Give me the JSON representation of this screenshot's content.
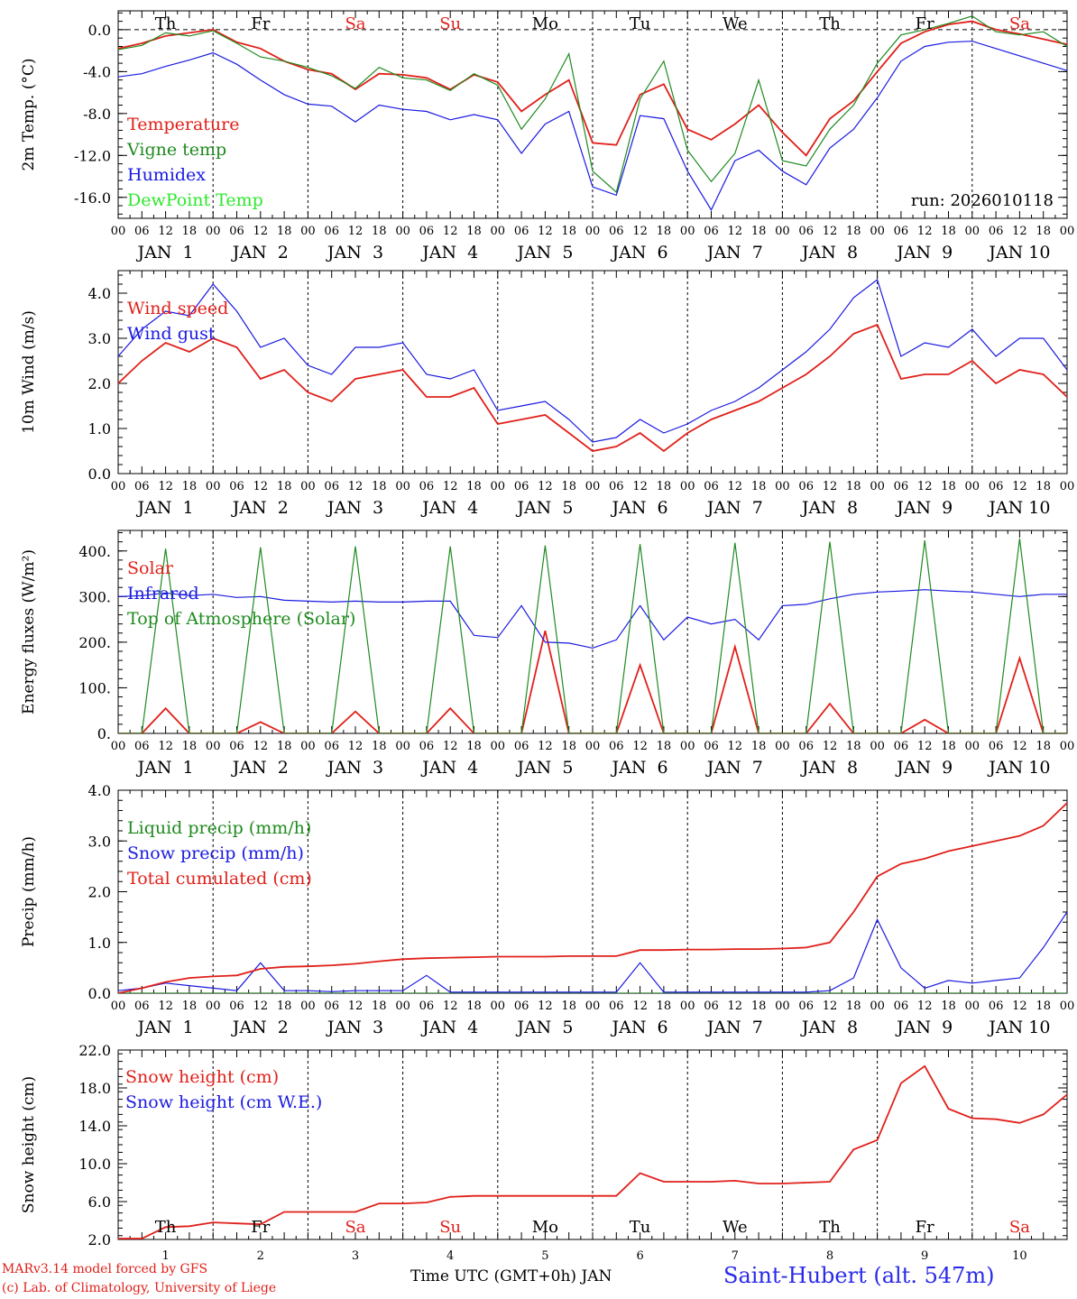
{
  "station_label": "Saint-Hubert (alt. 547m)",
  "credits": [
    "MARv3.14 model forced by GFS",
    "(c) Lab. of Climatology, University of Liege"
  ],
  "x_title": "Time UTC (GMT+0h) JAN",
  "run_label": "run: 2026010118",
  "day_names": [
    "Th",
    "Fr",
    "Sa",
    "Su",
    "Mo",
    "Tu",
    "We",
    "Th",
    "Fr",
    "Sa"
  ],
  "weekend_flags": [
    false,
    false,
    true,
    true,
    false,
    false,
    false,
    false,
    false,
    true
  ],
  "date_labels": [
    "JAN  1",
    "JAN  2",
    "JAN  3",
    "JAN  4",
    "JAN  5",
    "JAN  6",
    "JAN  7",
    "JAN  8",
    "JAN  9",
    "JAN 10"
  ],
  "day_numbers": [
    "1",
    "2",
    "3",
    "4",
    "5",
    "6",
    "7",
    "8",
    "9",
    "10"
  ],
  "hour_labels": [
    "00",
    "06",
    "12",
    "18"
  ],
  "last_hour_label": "00",
  "colors": {
    "red": "#e0201a",
    "green": "#1f8a1f",
    "blue": "#1a1ae0",
    "lime": "#2ee82e",
    "station": "#2a2ae8",
    "axis": "#000000"
  },
  "chart_data": [
    {
      "type": "line",
      "ylabel": "2m Temp. (°C)",
      "ylim": [
        -18,
        1.8
      ],
      "yticks": [
        -16,
        -12,
        -8,
        -4,
        0
      ],
      "tick_labels": [
        "-16.0",
        "-12.0",
        "-8.0",
        "-4.0",
        "0.0"
      ],
      "zero_line": true,
      "x_hours": [
        0,
        6,
        12,
        18,
        24,
        30,
        36,
        42,
        48,
        54,
        60,
        66,
        72,
        78,
        84,
        90,
        96,
        102,
        108,
        114,
        120,
        126,
        132,
        138,
        144,
        150,
        156,
        162,
        168,
        174,
        180,
        186,
        192,
        198,
        204,
        210,
        216,
        222,
        228,
        234,
        240
      ],
      "series": [
        {
          "name": "Temperature",
          "color": "red",
          "values": [
            -1.8,
            -1.3,
            -0.6,
            -0.3,
            0,
            -1.2,
            -1.8,
            -3,
            -3.8,
            -4.2,
            -5.7,
            -4.2,
            -4.3,
            -4.6,
            -5.7,
            -4.3,
            -5,
            -7.8,
            -6.2,
            -4.8,
            -10.8,
            -11,
            -6.2,
            -5.2,
            -9.5,
            -10.5,
            -9,
            -7.2,
            -9.8,
            -12,
            -8.5,
            -6.8,
            -4,
            -1.3,
            -0.2,
            0.5,
            0.8,
            0,
            -0.4,
            -0.9,
            -1.4
          ]
        },
        {
          "name": "Vigne temp",
          "color": "green",
          "values": [
            -1.9,
            -1.5,
            -0.3,
            -0.6,
            -0.1,
            -1.3,
            -2.6,
            -3,
            -3.6,
            -4.4,
            -5.6,
            -3.6,
            -4.6,
            -4.8,
            -5.8,
            -4.2,
            -5.3,
            -9.5,
            -6.6,
            -2.3,
            -13.5,
            -15.5,
            -6.6,
            -3,
            -11.5,
            -14.5,
            -11.8,
            -4.8,
            -12.5,
            -13,
            -9.5,
            -7.2,
            -3.2,
            -0.5,
            0,
            0.6,
            1.3,
            -0.2,
            -0.5,
            -0.2,
            -1.6
          ]
        },
        {
          "name": "Humidex",
          "color": "blue",
          "values": [
            -4.5,
            -4.2,
            -3.5,
            -2.9,
            -2.2,
            -3.3,
            -4.8,
            -6.2,
            -7.1,
            -7.3,
            -8.8,
            -7.2,
            -7.6,
            -7.8,
            -8.6,
            -8.1,
            -8.6,
            -11.8,
            -9,
            -7.8,
            -15,
            -15.8,
            -8.2,
            -8.5,
            -13.5,
            -17.2,
            -12.5,
            -11.5,
            -13.5,
            -14.8,
            -11.3,
            -9.5,
            -6.5,
            -3,
            -1.6,
            -1.2,
            -1.1,
            -1.8,
            -2.5,
            -3.2,
            -3.9
          ]
        },
        {
          "name": "DewPoint Temp",
          "color": "lime",
          "values": []
        }
      ],
      "date_axis": "bottom"
    },
    {
      "type": "line",
      "ylabel": "10m Wind (m/s)",
      "ylim": [
        0,
        4.5
      ],
      "yticks": [
        0,
        1,
        2,
        3,
        4
      ],
      "tick_labels": [
        "0.0",
        "1.0",
        "2.0",
        "3.0",
        "4.0"
      ],
      "x_hours": [
        0,
        6,
        12,
        18,
        24,
        30,
        36,
        42,
        48,
        54,
        60,
        66,
        72,
        78,
        84,
        90,
        96,
        102,
        108,
        114,
        120,
        126,
        132,
        138,
        144,
        150,
        156,
        162,
        168,
        174,
        180,
        186,
        192,
        198,
        204,
        210,
        216,
        222,
        228,
        234,
        240
      ],
      "series": [
        {
          "name": "Wind speed",
          "color": "red",
          "values": [
            2,
            2.5,
            2.9,
            2.7,
            3,
            2.8,
            2.1,
            2.3,
            1.8,
            1.6,
            2.1,
            2.2,
            2.3,
            1.7,
            1.7,
            1.9,
            1.1,
            1.2,
            1.3,
            0.9,
            0.5,
            0.6,
            0.9,
            0.5,
            0.9,
            1.2,
            1.4,
            1.6,
            1.9,
            2.2,
            2.6,
            3.1,
            3.3,
            2.1,
            2.2,
            2.2,
            2.5,
            2,
            2.3,
            2.2,
            1.7
          ]
        },
        {
          "name": "Wind gust",
          "color": "blue",
          "values": [
            2.6,
            3.2,
            3.6,
            3.5,
            4.2,
            3.6,
            2.8,
            3,
            2.4,
            2.2,
            2.8,
            2.8,
            2.9,
            2.2,
            2.1,
            2.3,
            1.4,
            1.5,
            1.6,
            1.2,
            0.7,
            0.8,
            1.2,
            0.9,
            1.1,
            1.4,
            1.6,
            1.9,
            2.3,
            2.7,
            3.2,
            3.9,
            4.3,
            2.6,
            2.9,
            2.8,
            3.2,
            2.6,
            3,
            3,
            2.3
          ]
        }
      ],
      "date_axis": "bottom"
    },
    {
      "type": "line",
      "ylabel": "Energy fluxes (W/m²)",
      "ylim": [
        0,
        445
      ],
      "yticks": [
        0,
        100,
        200,
        300,
        400
      ],
      "tick_labels": [
        "0.",
        "100.",
        "200.",
        "300.",
        "400."
      ],
      "x_hours": [
        0,
        6,
        12,
        18,
        24,
        30,
        36,
        42,
        48,
        54,
        60,
        66,
        72,
        78,
        84,
        90,
        96,
        102,
        108,
        114,
        120,
        126,
        132,
        138,
        144,
        150,
        156,
        162,
        168,
        174,
        180,
        186,
        192,
        198,
        204,
        210,
        216,
        222,
        228,
        234,
        240
      ],
      "series": [
        {
          "name": "Solar",
          "color": "red",
          "values": [
            0,
            0,
            55,
            0,
            0,
            0,
            25,
            0,
            0,
            0,
            48,
            0,
            0,
            0,
            55,
            0,
            0,
            0,
            225,
            0,
            0,
            0,
            150,
            0,
            0,
            0,
            190,
            0,
            0,
            0,
            65,
            0,
            0,
            0,
            30,
            0,
            0,
            0,
            165,
            0,
            0
          ]
        },
        {
          "name": "Infrared",
          "color": "blue",
          "values": [
            300,
            302,
            308,
            302,
            305,
            298,
            300,
            292,
            290,
            288,
            290,
            288,
            288,
            290,
            290,
            215,
            210,
            280,
            200,
            198,
            187,
            205,
            280,
            205,
            255,
            240,
            250,
            205,
            280,
            283,
            295,
            305,
            310,
            312,
            315,
            312,
            310,
            305,
            300,
            305,
            305
          ]
        },
        {
          "name": "Top of Atmosphere (Solar)",
          "color": "green",
          "values": [
            0,
            0,
            405,
            0,
            0,
            0,
            408,
            0,
            0,
            0,
            410,
            0,
            0,
            0,
            410,
            0,
            0,
            0,
            412,
            0,
            0,
            0,
            415,
            0,
            0,
            0,
            418,
            0,
            0,
            0,
            420,
            0,
            0,
            0,
            423,
            0,
            0,
            0,
            427,
            0,
            0
          ]
        }
      ],
      "date_axis": "bottom"
    },
    {
      "type": "line",
      "ylabel": "Precip (mm/h)",
      "ylim": [
        0,
        4.0
      ],
      "yticks": [
        0,
        1,
        2,
        3,
        4
      ],
      "tick_labels": [
        "0.0",
        "1.0",
        "2.0",
        "3.0",
        "4.0"
      ],
      "x_hours": [
        0,
        6,
        12,
        18,
        24,
        30,
        36,
        42,
        48,
        54,
        60,
        66,
        72,
        78,
        84,
        90,
        96,
        102,
        108,
        114,
        120,
        126,
        132,
        138,
        144,
        150,
        156,
        162,
        168,
        174,
        180,
        186,
        192,
        198,
        204,
        210,
        216,
        222,
        228,
        234,
        240
      ],
      "series": [
        {
          "name": "Liquid precip (mm/h)",
          "color": "green",
          "values": [
            0,
            0,
            0,
            0,
            0,
            0,
            0,
            0,
            0,
            0,
            0,
            0,
            0,
            0,
            0,
            0,
            0,
            0,
            0,
            0,
            0,
            0,
            0,
            0,
            0,
            0,
            0,
            0,
            0,
            0,
            0,
            0,
            0,
            0,
            0,
            0,
            0,
            0,
            0,
            0,
            0
          ]
        },
        {
          "name": "Snow precip (mm/h)",
          "color": "blue",
          "values": [
            0.05,
            0.1,
            0.2,
            0.15,
            0.1,
            0.05,
            0.6,
            0.05,
            0.05,
            0.03,
            0.05,
            0.05,
            0.05,
            0.35,
            0.02,
            0.02,
            0.02,
            0.02,
            0.02,
            0.02,
            0.02,
            0.02,
            0.6,
            0.02,
            0.02,
            0.02,
            0.02,
            0.02,
            0.02,
            0.02,
            0.05,
            0.3,
            1.45,
            0.5,
            0.1,
            0.25,
            0.2,
            0.25,
            0.3,
            0.9,
            1.6
          ]
        },
        {
          "name": "Total cumulated (cm)",
          "color": "red",
          "values": [
            0,
            0.1,
            0.22,
            0.3,
            0.33,
            0.35,
            0.48,
            0.52,
            0.53,
            0.55,
            0.58,
            0.63,
            0.67,
            0.69,
            0.7,
            0.71,
            0.72,
            0.72,
            0.72,
            0.73,
            0.73,
            0.73,
            0.85,
            0.85,
            0.86,
            0.86,
            0.87,
            0.87,
            0.88,
            0.9,
            1.0,
            1.6,
            2.3,
            2.55,
            2.65,
            2.8,
            2.9,
            3.0,
            3.1,
            3.3,
            3.75
          ]
        }
      ],
      "date_axis": "bottom"
    },
    {
      "type": "line",
      "ylabel": "Snow height (cm)",
      "ylim": [
        2,
        22
      ],
      "yticks": [
        2,
        6,
        10,
        14,
        18,
        22
      ],
      "tick_labels": [
        "2.0",
        "6.0",
        "10.0",
        "14.0",
        "18.0",
        "22.0"
      ],
      "x_hours": [
        0,
        6,
        12,
        18,
        24,
        30,
        36,
        42,
        48,
        54,
        60,
        66,
        72,
        78,
        84,
        90,
        96,
        102,
        108,
        114,
        120,
        126,
        132,
        138,
        144,
        150,
        156,
        162,
        168,
        174,
        180,
        186,
        192,
        198,
        204,
        210,
        216,
        222,
        228,
        234,
        240
      ],
      "series": [
        {
          "name": "Snow height (cm)",
          "color": "red",
          "values": [
            2.1,
            2.1,
            3.3,
            3.4,
            3.8,
            3.7,
            3.6,
            4.9,
            4.9,
            4.9,
            4.9,
            5.8,
            5.8,
            5.9,
            6.5,
            6.6,
            6.6,
            6.6,
            6.6,
            6.6,
            6.6,
            6.6,
            9,
            8.1,
            8.1,
            8.1,
            8.2,
            7.9,
            7.9,
            8,
            8.1,
            11.5,
            12.5,
            18.5,
            20.3,
            15.8,
            14.8,
            14.7,
            14.3,
            15.2,
            17.3
          ]
        },
        {
          "name": "Snow height (cm W.E.)",
          "color": "blue",
          "values": []
        }
      ],
      "date_axis": "none",
      "day_names_inside": true
    }
  ]
}
